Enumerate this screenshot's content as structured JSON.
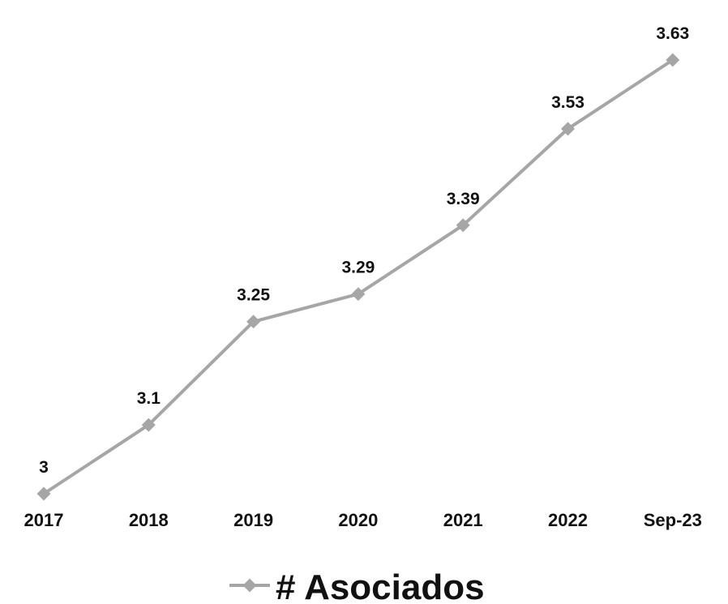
{
  "chart_data": {
    "type": "line",
    "categories": [
      "2017",
      "2018",
      "2019",
      "2020",
      "2021",
      "2022",
      "Sep-23"
    ],
    "series": [
      {
        "name": "# Asociados",
        "values": [
          3,
          3.1,
          3.25,
          3.29,
          3.39,
          3.53,
          3.63
        ],
        "data_labels": [
          "3",
          "3.1",
          "3.25",
          "3.29",
          "3.39",
          "3.53",
          "3.63"
        ],
        "color": "#a6a6a6",
        "marker": "diamond"
      }
    ],
    "ylim": [
      3,
      3.63
    ],
    "grid": false,
    "legend_position": "bottom"
  }
}
